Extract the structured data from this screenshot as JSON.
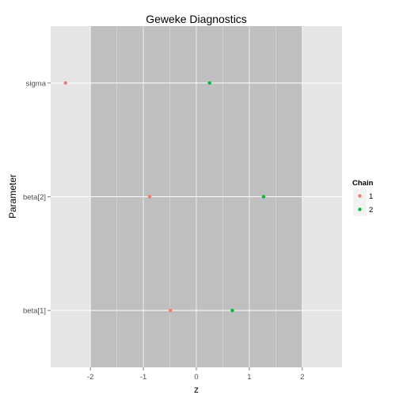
{
  "chart_data": {
    "type": "scatter",
    "title": "Geweke Diagnostics",
    "xlabel": "z",
    "ylabel": "Parameter",
    "xlim": [
      -2.75,
      2.75
    ],
    "x_ticks": [
      -2,
      -1,
      0,
      1,
      2
    ],
    "x_tick_labels": [
      "-2",
      "-1",
      "0",
      "1",
      "2"
    ],
    "categories": [
      "beta[1]",
      "beta[2]",
      "sigma"
    ],
    "shaded_band": [
      -2,
      2
    ],
    "grid": true,
    "legend": {
      "title": "Chain",
      "placement": "right",
      "entries": [
        "1",
        "2"
      ]
    },
    "series": [
      {
        "name": "1",
        "color": "#f8766d",
        "points": [
          {
            "y": "beta[1]",
            "x": -0.49
          },
          {
            "y": "beta[2]",
            "x": -0.88
          },
          {
            "y": "sigma",
            "x": -2.47
          }
        ]
      },
      {
        "name": "2",
        "color": "#00ba38",
        "points": [
          {
            "y": "beta[1]",
            "x": 0.68
          },
          {
            "y": "beta[2]",
            "x": 1.27
          },
          {
            "y": "sigma",
            "x": 0.25
          }
        ]
      }
    ]
  }
}
